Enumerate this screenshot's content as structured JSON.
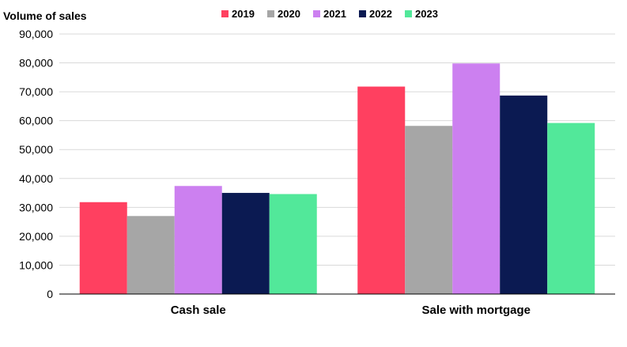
{
  "chart_data": {
    "type": "bar",
    "title": "",
    "ylabel": "Volume of sales",
    "xlabel": "",
    "categories": [
      "Cash sale",
      "Sale with mortgage"
    ],
    "series": [
      {
        "name": "2019",
        "color": "#ff4060",
        "values": [
          31800,
          71800
        ]
      },
      {
        "name": "2020",
        "color": "#a6a6a6",
        "values": [
          27000,
          58200
        ]
      },
      {
        "name": "2021",
        "color": "#cc80f0",
        "values": [
          37400,
          79800
        ]
      },
      {
        "name": "2022",
        "color": "#0b1a52",
        "values": [
          35000,
          68700
        ]
      },
      {
        "name": "2023",
        "color": "#52e89a",
        "values": [
          34600,
          59200
        ]
      }
    ],
    "ylim": [
      0,
      90000
    ],
    "yticks": [
      "0",
      "10,000",
      "20,000",
      "30,000",
      "40,000",
      "50,000",
      "60,000",
      "70,000",
      "80,000",
      "90,000"
    ],
    "grid": true,
    "legend_position": "top"
  }
}
